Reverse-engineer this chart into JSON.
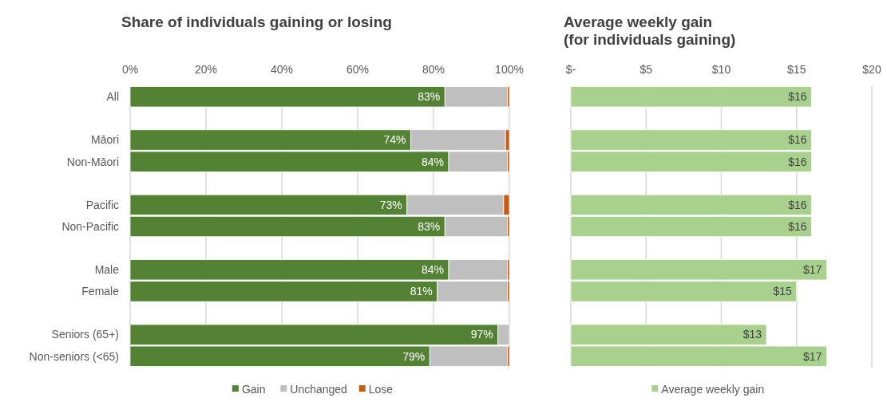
{
  "chart_data": [
    {
      "type": "bar",
      "orientation": "horizontal",
      "stacked": true,
      "title": "Share of individuals gaining or losing",
      "categories": [
        "All",
        null,
        "Māori",
        "Non-Māori",
        null,
        "Pacific",
        "Non-Pacific",
        null,
        "Male",
        "Female",
        null,
        "Seniors (65+)",
        "Non-seniors (<65)"
      ],
      "series": [
        {
          "name": "Gain",
          "color": "#548235",
          "values": [
            83,
            null,
            74,
            84,
            null,
            73,
            83,
            null,
            84,
            81,
            null,
            97,
            79
          ],
          "value_labels": [
            "83%",
            null,
            "74%",
            "84%",
            null,
            "73%",
            "83%",
            null,
            "84%",
            "81%",
            null,
            "97%",
            "79%"
          ]
        },
        {
          "name": "Unchanged",
          "color": "#bfbfbf",
          "values": [
            16.5,
            null,
            25,
            15.5,
            null,
            25.5,
            16.5,
            null,
            15.5,
            18.5,
            null,
            3,
            20.5
          ]
        },
        {
          "name": "Lose",
          "color": "#c55a11",
          "values": [
            0.5,
            null,
            1,
            0.5,
            null,
            1.5,
            0.5,
            null,
            0.5,
            0.5,
            null,
            0,
            0.5
          ]
        }
      ],
      "xlim": [
        0,
        100
      ],
      "xticks": [
        {
          "value": 0,
          "label": "0%"
        },
        {
          "value": 20,
          "label": "20%"
        },
        {
          "value": 40,
          "label": "40%"
        },
        {
          "value": 60,
          "label": "60%"
        },
        {
          "value": 80,
          "label": "80%"
        },
        {
          "value": 100,
          "label": "100%"
        }
      ],
      "grid": "x",
      "legend": "bottom"
    },
    {
      "type": "bar",
      "orientation": "horizontal",
      "title": "Average weekly gain\n(for individuals gaining)",
      "categories": [
        null,
        null,
        null,
        null,
        null,
        null,
        null,
        null,
        null,
        null,
        null,
        null,
        null
      ],
      "series": [
        {
          "name": "Average weekly gain",
          "color": "#a9d18e",
          "values": [
            16,
            null,
            16,
            16,
            null,
            16,
            16,
            null,
            17,
            15,
            null,
            13,
            17
          ],
          "value_labels": [
            "$16",
            null,
            "$16",
            "$16",
            null,
            "$16",
            "$16",
            null,
            "$17",
            "$15",
            null,
            "$13",
            "$17"
          ]
        }
      ],
      "xlim": [
        0,
        20
      ],
      "xticks": [
        {
          "value": 0,
          "label": "$-"
        },
        {
          "value": 5,
          "label": "$5"
        },
        {
          "value": 10,
          "label": "$10"
        },
        {
          "value": 15,
          "label": "$15"
        },
        {
          "value": 20,
          "label": "$20"
        }
      ],
      "grid": "x",
      "legend": "bottom",
      "tick_labels": "x"
    }
  ]
}
